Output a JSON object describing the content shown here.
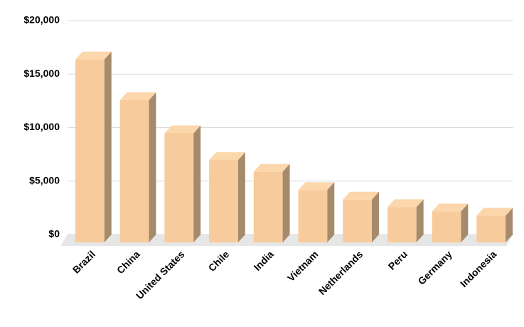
{
  "chart_data": {
    "type": "bar3d",
    "categories": [
      "Brazil",
      "China",
      "United States",
      "Chile",
      "India",
      "Vietnam",
      "Netherlands",
      "Peru",
      "Germany",
      "Indonesia"
    ],
    "values": [
      17100,
      13300,
      10200,
      7700,
      6600,
      4900,
      4000,
      3300,
      2900,
      2500
    ],
    "color": "#f8cb9c",
    "ylim": [
      0,
      20000
    ],
    "yticks": [
      {
        "value": 0,
        "label": "$0"
      },
      {
        "value": 5000,
        "label": "$5,000"
      },
      {
        "value": 10000,
        "label": "$10,000"
      },
      {
        "value": 15000,
        "label": "$15,000"
      },
      {
        "value": 20000,
        "label": "$20,000"
      }
    ],
    "grid": true
  }
}
